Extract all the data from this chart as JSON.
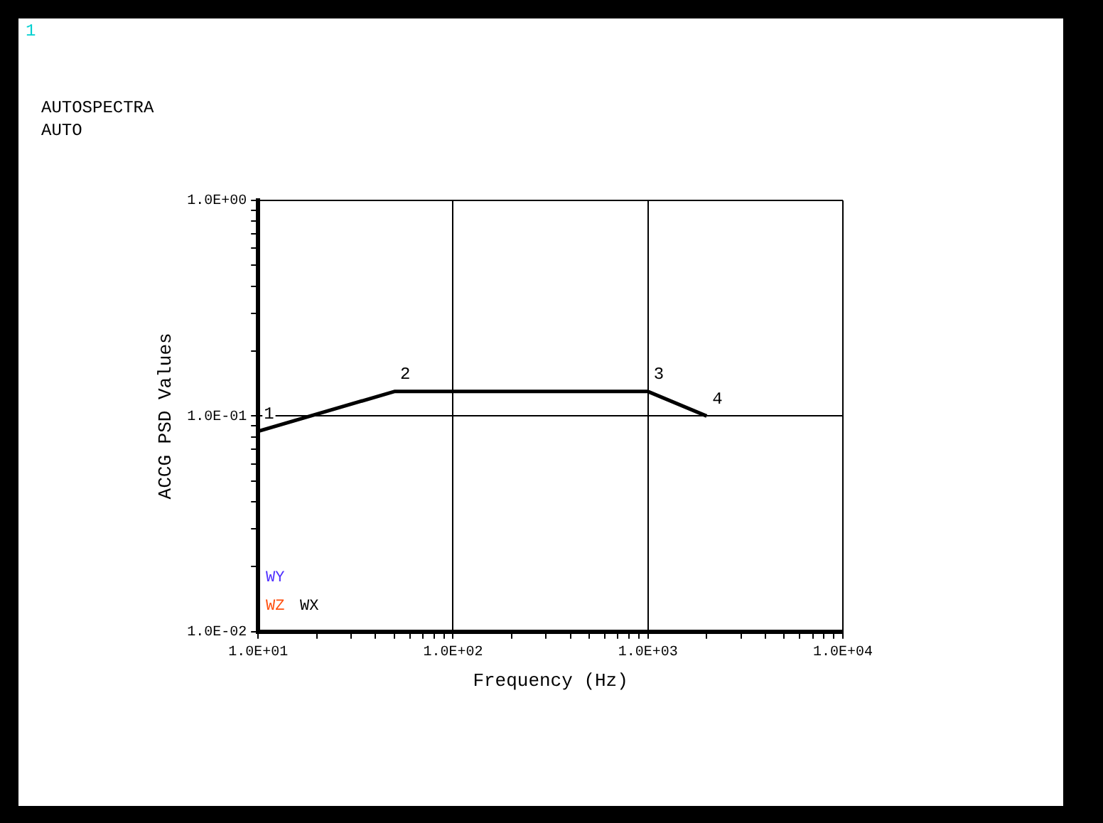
{
  "chart_data": {
    "type": "line",
    "title": "AUTOSPECTRA",
    "subtitle": "AUTO",
    "xlabel": "Frequency (Hz)",
    "ylabel": "ACCG PSD Values",
    "x": [
      10,
      50,
      1000,
      2000
    ],
    "series": [
      {
        "color": "#000000",
        "values": [
          0.085,
          0.13,
          0.13,
          0.1
        ]
      }
    ],
    "log": "xy",
    "xlim": [
      10,
      10000
    ],
    "ylim": [
      0.01,
      1
    ],
    "xticks": [
      {
        "value": 10,
        "label": "1.0E+01"
      },
      {
        "value": 20,
        "label": null
      },
      {
        "value": 30,
        "label": null
      },
      {
        "value": 40,
        "label": null
      },
      {
        "value": 50,
        "label": null
      },
      {
        "value": 60,
        "label": null
      },
      {
        "value": 70,
        "label": null
      },
      {
        "value": 80,
        "label": null
      },
      {
        "value": 90,
        "label": null
      },
      {
        "value": 100,
        "label": "1.0E+02"
      },
      {
        "value": 200,
        "label": null
      },
      {
        "value": 300,
        "label": null
      },
      {
        "value": 400,
        "label": null
      },
      {
        "value": 500,
        "label": null
      },
      {
        "value": 600,
        "label": null
      },
      {
        "value": 700,
        "label": null
      },
      {
        "value": 800,
        "label": null
      },
      {
        "value": 900,
        "label": null
      },
      {
        "value": 1000,
        "label": "1.0E+03"
      },
      {
        "value": 2000,
        "label": null
      },
      {
        "value": 3000,
        "label": null
      },
      {
        "value": 4000,
        "label": null
      },
      {
        "value": 5000,
        "label": null
      },
      {
        "value": 6000,
        "label": null
      },
      {
        "value": 7000,
        "label": null
      },
      {
        "value": 8000,
        "label": null
      },
      {
        "value": 9000,
        "label": null
      },
      {
        "value": 10000,
        "label": "1.0E+04"
      }
    ],
    "yticks": [
      {
        "value": 0.01,
        "label": "1.0E-02"
      },
      {
        "value": 0.02,
        "label": null
      },
      {
        "value": 0.03,
        "label": null
      },
      {
        "value": 0.04,
        "label": null
      },
      {
        "value": 0.05,
        "label": null
      },
      {
        "value": 0.06,
        "label": null
      },
      {
        "value": 0.07,
        "label": null
      },
      {
        "value": 0.08,
        "label": null
      },
      {
        "value": 0.09,
        "label": null
      },
      {
        "value": 0.1,
        "label": "1.0E-01"
      },
      {
        "value": 0.2,
        "label": null
      },
      {
        "value": 0.3,
        "label": null
      },
      {
        "value": 0.4,
        "label": null
      },
      {
        "value": 0.5,
        "label": null
      },
      {
        "value": 0.6,
        "label": null
      },
      {
        "value": 0.7,
        "label": null
      },
      {
        "value": 0.8,
        "label": null
      },
      {
        "value": 0.9,
        "label": null
      },
      {
        "value": 1,
        "label": "1.0E+00"
      }
    ],
    "grid": true,
    "legend": false,
    "marker": "none",
    "line_style": "solid",
    "annotations": [
      "1",
      "WY",
      "WZ",
      "WX",
      {
        "text": "1",
        "x": 10,
        "y": 0.085
      },
      {
        "text": "2",
        "x": 50,
        "y": 0.13
      },
      {
        "text": "3",
        "x": 1000,
        "y": 0.13
      },
      {
        "text": "4",
        "x": 2000,
        "y": 0.1
      }
    ]
  }
}
